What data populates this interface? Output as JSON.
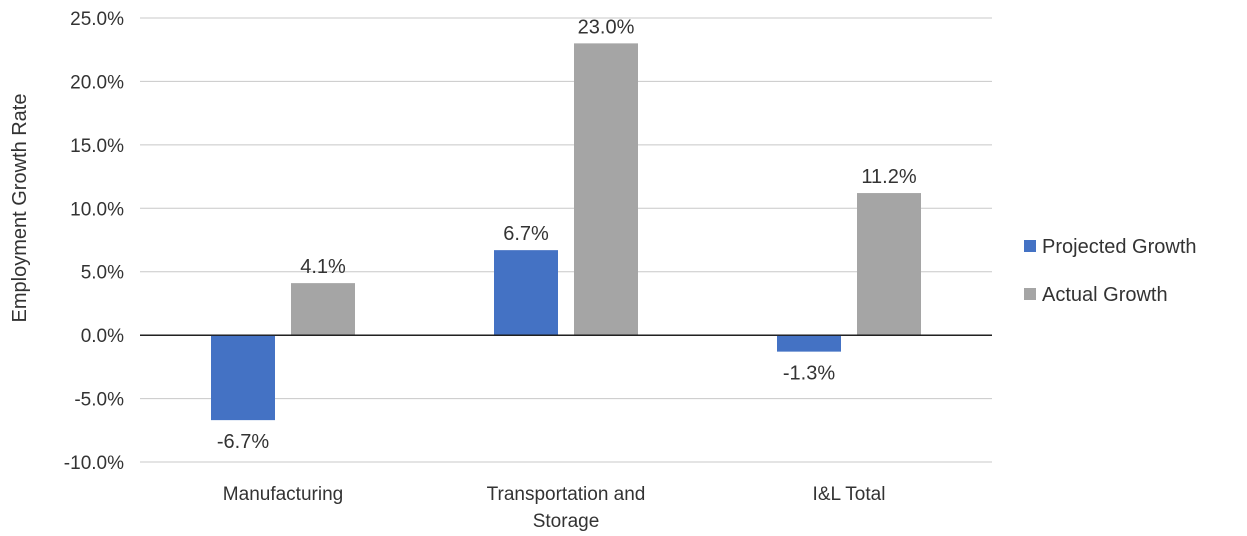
{
  "chart_data": {
    "type": "bar",
    "title": "",
    "xlabel": "",
    "ylabel": "Employment Growth Rate",
    "categories": [
      "Manufacturing",
      "Transportation and Storage",
      "I&L Total"
    ],
    "series": [
      {
        "name": "Projected Growth",
        "values": [
          -6.7,
          6.7,
          -1.3
        ],
        "labels": [
          "-6.7%",
          "6.7%",
          "-1.3%"
        ],
        "color": "#4472c4"
      },
      {
        "name": "Actual Growth",
        "values": [
          4.1,
          23.0,
          11.2
        ],
        "labels": [
          "4.1%",
          "23.0%",
          "11.2%"
        ],
        "color": "#a5a5a5"
      }
    ],
    "ylim": [
      -10,
      25
    ],
    "yticks": [
      25,
      20,
      15,
      10,
      5,
      0,
      -5,
      -10
    ],
    "ytick_labels": [
      "25.0%",
      "20.0%",
      "15.0%",
      "10.0%",
      "5.0%",
      "0.0%",
      "-5.0%",
      "-10.0%"
    ],
    "grid": true,
    "legend_position": "right"
  }
}
